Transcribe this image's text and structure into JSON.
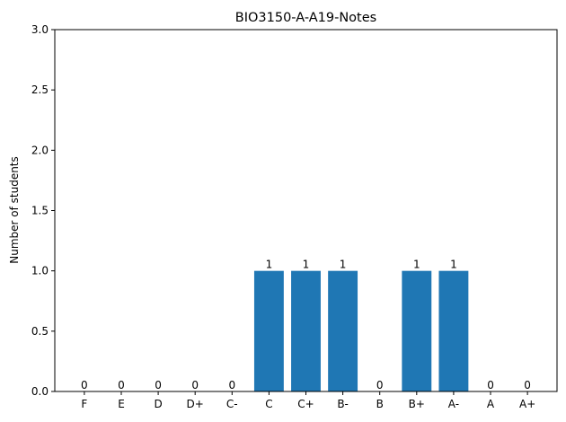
{
  "chart_data": {
    "type": "bar",
    "title": "BIO3150-A-A19-Notes",
    "xlabel": "",
    "ylabel": "Number of students",
    "categories": [
      "F",
      "E",
      "D",
      "D+",
      "C-",
      "C",
      "C+",
      "B-",
      "B",
      "B+",
      "A-",
      "A",
      "A+"
    ],
    "values": [
      0,
      0,
      0,
      0,
      0,
      1,
      1,
      1,
      0,
      1,
      1,
      0,
      0
    ],
    "data_labels": [
      "0",
      "0",
      "0",
      "0",
      "0",
      "1",
      "1",
      "1",
      "0",
      "1",
      "1",
      "0",
      "0"
    ],
    "ylim": [
      0,
      3
    ],
    "yticks": [
      0,
      0.5,
      1,
      1.5,
      2,
      2.5,
      3
    ],
    "ytick_labels": [
      "0.0",
      "0.5",
      "1.0",
      "1.5",
      "2.0",
      "2.5",
      "3.0"
    ],
    "grid": false,
    "bar_color": "#1f77b4"
  }
}
